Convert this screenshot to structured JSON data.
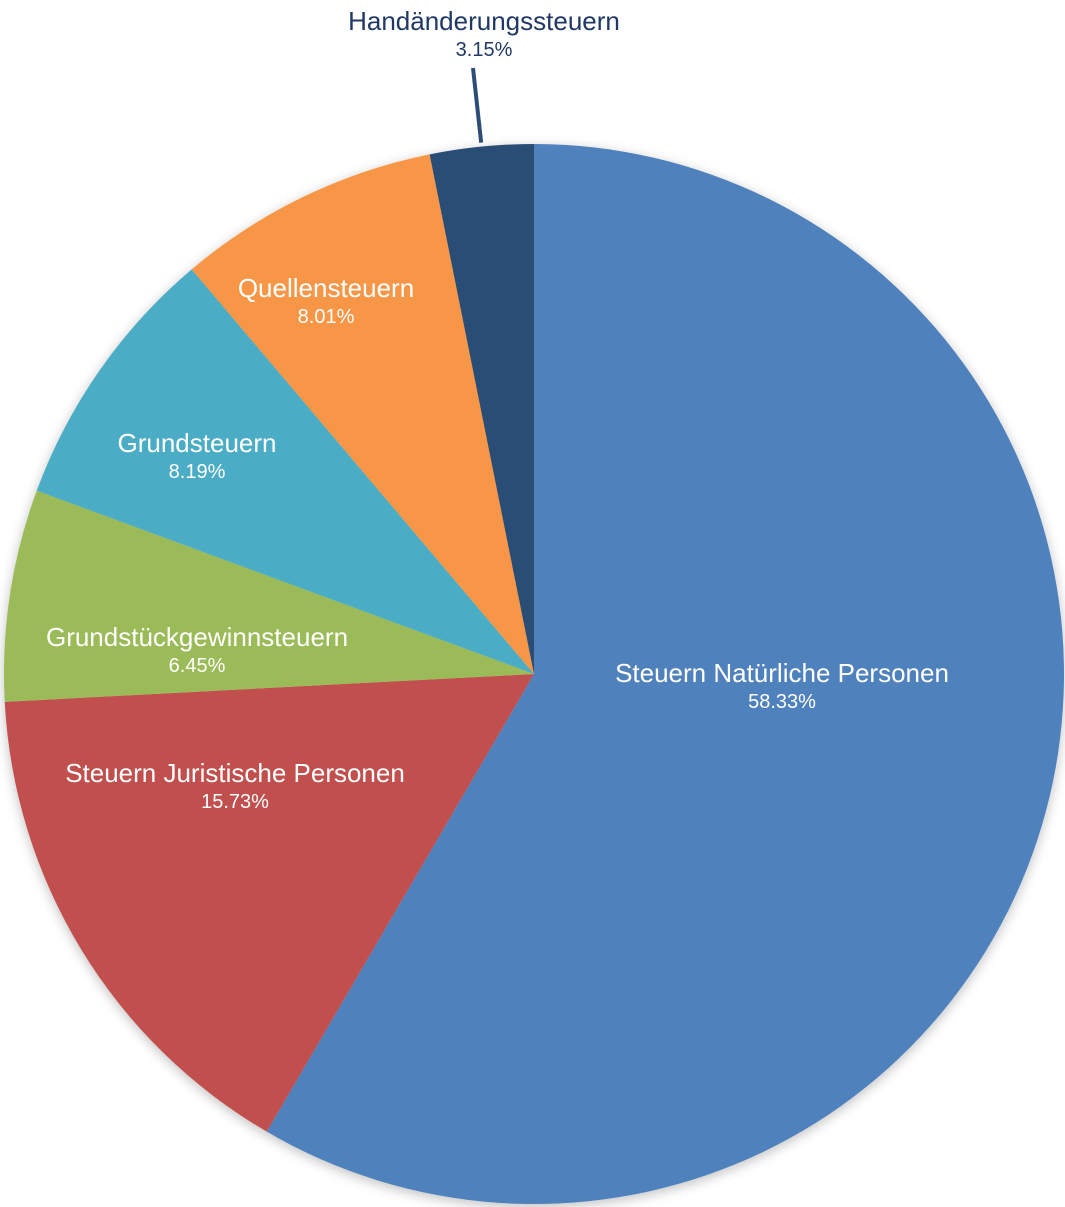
{
  "chart_data": {
    "type": "pie",
    "title": "",
    "legend": "none",
    "label_style": "category name and percentage on slice",
    "slices": [
      {
        "label": "Steuern Natürliche Personen",
        "value": 58.33,
        "value_label": "58.33%",
        "color": "#4F81BD",
        "label_color": "#ffffff"
      },
      {
        "label": "Steuern Juristische Personen",
        "value": 15.73,
        "value_label": "15.73%",
        "color": "#C0504D",
        "label_color": "#ffffff"
      },
      {
        "label": "Grundstückgewinnsteuern",
        "value": 6.45,
        "value_label": "6.45%",
        "color": "#9BBB59",
        "label_color": "#ffffff"
      },
      {
        "label": "Grundsteuern",
        "value": 8.19,
        "value_label": "8.19%",
        "color": "#4BACC6",
        "label_color": "#ffffff"
      },
      {
        "label": "Quellensteuern",
        "value": 8.01,
        "value_label": "8.01%",
        "color": "#F79646",
        "label_color": "#ffffff"
      },
      {
        "label": "Handänderungssteuern",
        "value": 3.15,
        "value_label": "3.15%",
        "color": "#2C4D75",
        "label_color": "#1F3864"
      }
    ]
  }
}
